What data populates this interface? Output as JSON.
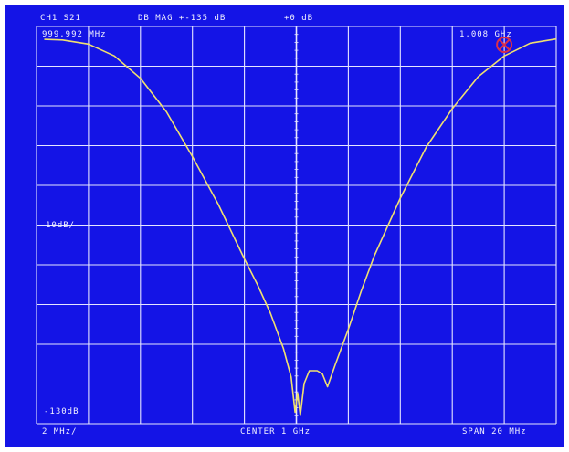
{
  "header": {
    "channel": "CH1 S21",
    "format": "DB  MAG +-135 dB",
    "ref": "+0 dB"
  },
  "labels": {
    "start_freq": "999.992 MHz",
    "stop_freq": "1.008 GHz",
    "scale": "10dB/",
    "bottom_ref": "-130dB",
    "x_div": "2 MHz/",
    "center": "CENTER 1 GHz",
    "span": "SPAN 20 MHz"
  },
  "colors": {
    "screen": "#1414e6",
    "grid": "#e6e6ff",
    "trace": "#f0e070",
    "marker": "#d9304a"
  },
  "chart_data": {
    "type": "line",
    "title": "CH1 S21",
    "xlabel": "",
    "ylabel": "",
    "x_unit": "MHz",
    "y_unit": "dB",
    "xlim": [
      990,
      1010
    ],
    "ylim": [
      -130,
      -10
    ],
    "grid": true,
    "scale_per_div_db": 10,
    "span_per_div_mhz": 2,
    "series": [
      {
        "values": [
          [
            990.3,
            -10.3
          ],
          [
            991.0,
            -10.5
          ],
          [
            992.0,
            -11.8
          ],
          [
            993.0,
            -15.5
          ],
          [
            994.0,
            -22.5
          ],
          [
            995.0,
            -33
          ],
          [
            996.0,
            -47
          ],
          [
            997.0,
            -62
          ],
          [
            998.0,
            -79
          ],
          [
            998.5,
            -87
          ],
          [
            999.0,
            -96
          ],
          [
            999.5,
            -107
          ],
          [
            999.8,
            -116
          ],
          [
            999.95,
            -127
          ],
          [
            1000.05,
            -121
          ],
          [
            1000.15,
            -128
          ],
          [
            1000.3,
            -118
          ],
          [
            1000.5,
            -114
          ],
          [
            1000.8,
            -114
          ],
          [
            1001.0,
            -115
          ],
          [
            1001.2,
            -119
          ],
          [
            1001.5,
            -112
          ],
          [
            1002.0,
            -101
          ],
          [
            1002.5,
            -89
          ],
          [
            1003.0,
            -78
          ],
          [
            1004.0,
            -60
          ],
          [
            1005.0,
            -44
          ],
          [
            1006.0,
            -32
          ],
          [
            1007.0,
            -22
          ],
          [
            1008.0,
            -15.5
          ],
          [
            1009.0,
            -11.5
          ],
          [
            1010.0,
            -10.2
          ]
        ]
      }
    ],
    "marker": {
      "x": 1008,
      "y": -12
    }
  }
}
